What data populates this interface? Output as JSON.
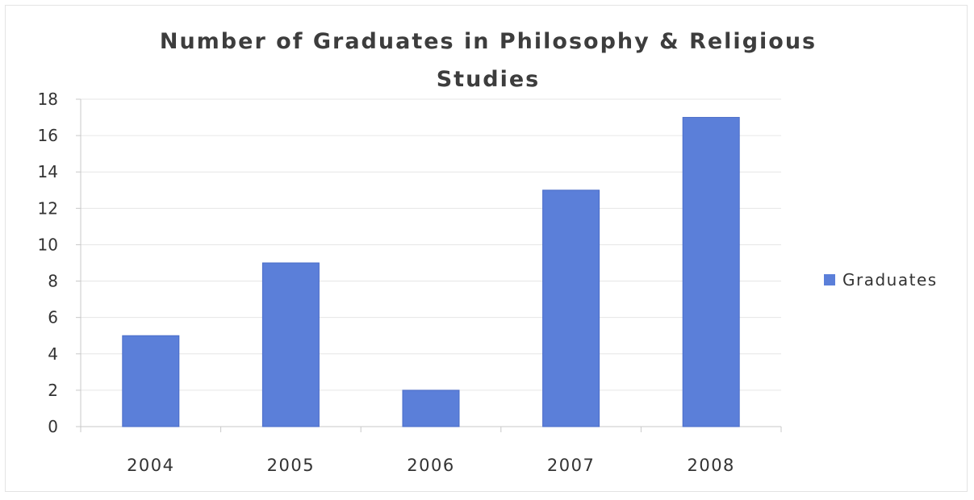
{
  "chart_data": {
    "type": "bar",
    "title": "Number of Graduates in Philosophy & Religious Studies",
    "xlabel": "",
    "ylabel": "",
    "categories": [
      "2004",
      "2005",
      "2006",
      "2007",
      "2008"
    ],
    "series": [
      {
        "name": "Graduates",
        "values": [
          5,
          9,
          2,
          13,
          17
        ]
      }
    ],
    "ylim": [
      0,
      18
    ],
    "yticks": [
      0,
      2,
      4,
      6,
      8,
      10,
      12,
      14,
      16,
      18
    ],
    "grid": true,
    "legend": "right",
    "colors": {
      "bar": "#5b7fd9",
      "bar_edge": "#4a6cc8",
      "grid": "#e6e6e6",
      "axis": "#c8c8c8"
    }
  }
}
